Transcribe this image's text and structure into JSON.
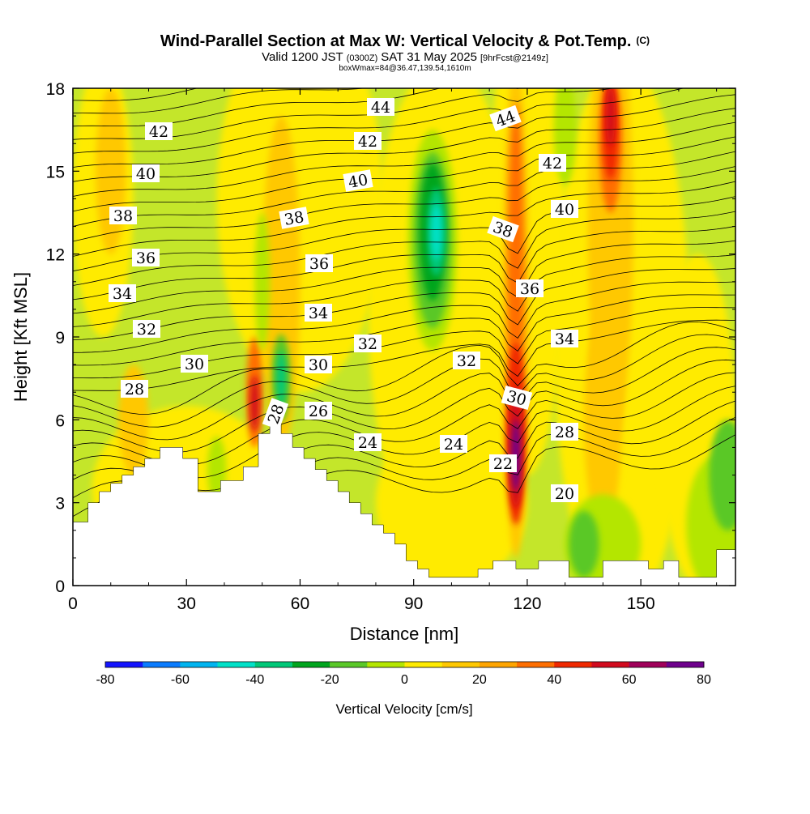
{
  "title_main": "Wind-Parallel Section at Max W: Vertical Velocity & Pot.Temp.",
  "title_mark": "(C)",
  "subtitle_a": "Valid 1200 JST",
  "subtitle_b": "(0300Z)",
  "subtitle_c": "SAT 31 May 2025",
  "subtitle_d": "[9hrFcst@2149z]",
  "subtitle_line3": "boxWmax=84@36.47,139.54,1610m",
  "chart_data": {
    "type": "contour-filled cross-section",
    "xlabel": "Distance [nm]",
    "ylabel": "Height [Kft MSL]",
    "xlim": [
      0,
      175
    ],
    "ylim": [
      0,
      18
    ],
    "x_ticks": [
      "0",
      "30",
      "60",
      "90",
      "120",
      "150"
    ],
    "y_ticks": [
      "0",
      "3",
      "6",
      "9",
      "12",
      "15",
      "18"
    ],
    "colorbar": {
      "label": "Vertical Velocity [cm/s]",
      "ticks": [
        "-80",
        "-60",
        "-40",
        "-20",
        "0",
        "20",
        "40",
        "60",
        "80"
      ],
      "levels": [
        -80,
        -70,
        -60,
        -50,
        -40,
        -30,
        -20,
        -10,
        0,
        10,
        20,
        30,
        40,
        50,
        60,
        70,
        80
      ],
      "colors": [
        "#1414ff",
        "#0a7cff",
        "#00b4f0",
        "#00e1c8",
        "#00c878",
        "#00a51e",
        "#5ac828",
        "#b4e600",
        "#ffeb00",
        "#ffc800",
        "#ffa500",
        "#ff6e00",
        "#f02800",
        "#d20a1e",
        "#a0005a",
        "#6e008c"
      ]
    },
    "theta_contour_labels": [
      "44",
      "42",
      "40",
      "38",
      "36",
      "34",
      "32",
      "30",
      "28",
      "26",
      "24",
      "22",
      "20"
    ],
    "terrain_kft": [
      [
        0,
        2.3
      ],
      [
        4,
        2.3
      ],
      [
        4,
        3
      ],
      [
        7,
        3
      ],
      [
        7,
        3.4
      ],
      [
        10,
        3.4
      ],
      [
        10,
        3.7
      ],
      [
        13,
        3.7
      ],
      [
        13,
        4.0
      ],
      [
        16,
        4.0
      ],
      [
        16,
        4.3
      ],
      [
        19,
        4.3
      ],
      [
        19,
        4.6
      ],
      [
        23,
        4.6
      ],
      [
        23,
        5.0
      ],
      [
        29,
        5.0
      ],
      [
        29,
        4.6
      ],
      [
        33,
        4.6
      ],
      [
        33,
        3.4
      ],
      [
        39,
        3.4
      ],
      [
        39,
        3.8
      ],
      [
        45,
        3.8
      ],
      [
        45,
        4.3
      ],
      [
        49,
        4.3
      ],
      [
        49,
        5.5
      ],
      [
        52,
        5.5
      ],
      [
        52,
        5.9
      ],
      [
        55,
        5.9
      ],
      [
        55,
        5.5
      ],
      [
        58,
        5.5
      ],
      [
        58,
        5.0
      ],
      [
        61,
        5.0
      ],
      [
        61,
        4.6
      ],
      [
        64,
        4.6
      ],
      [
        64,
        4.2
      ],
      [
        67,
        4.2
      ],
      [
        67,
        3.8
      ],
      [
        70,
        3.8
      ],
      [
        70,
        3.4
      ],
      [
        73,
        3.4
      ],
      [
        73,
        3.0
      ],
      [
        76,
        3.0
      ],
      [
        76,
        2.6
      ],
      [
        79,
        2.6
      ],
      [
        79,
        2.2
      ],
      [
        82,
        2.2
      ],
      [
        82,
        1.9
      ],
      [
        85,
        1.9
      ],
      [
        85,
        1.5
      ],
      [
        88,
        1.5
      ],
      [
        88,
        0.9
      ],
      [
        91,
        0.9
      ],
      [
        91,
        0.6
      ],
      [
        94,
        0.6
      ],
      [
        94,
        0.3
      ],
      [
        107,
        0.3
      ],
      [
        107,
        0.6
      ],
      [
        111,
        0.6
      ],
      [
        111,
        0.9
      ],
      [
        117,
        0.9
      ],
      [
        117,
        0.6
      ],
      [
        123,
        0.6
      ],
      [
        123,
        0.9
      ],
      [
        131,
        0.9
      ],
      [
        131,
        0.3
      ],
      [
        140,
        0.3
      ],
      [
        140,
        0.9
      ],
      [
        152,
        0.9
      ],
      [
        152,
        0.6
      ],
      [
        156,
        0.6
      ],
      [
        156,
        0.9
      ],
      [
        160,
        0.9
      ],
      [
        160,
        0.3
      ],
      [
        170,
        0.3
      ],
      [
        170,
        1.3
      ],
      [
        175,
        1.3
      ]
    ]
  }
}
